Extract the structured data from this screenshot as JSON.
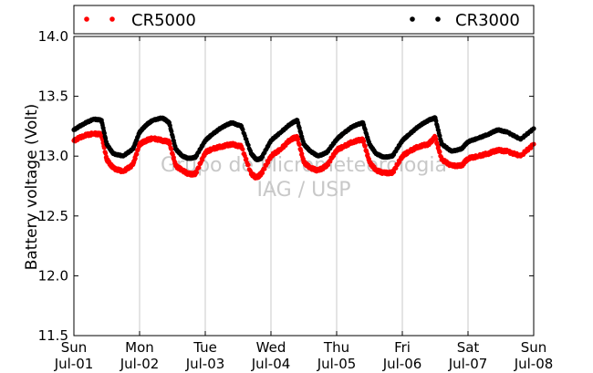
{
  "chart_data": {
    "type": "scatter",
    "title": "",
    "xlabel": "",
    "ylabel": "Battery voltage (Volt)",
    "ylim": [
      11.5,
      14.0
    ],
    "yticks": [
      11.5,
      12.0,
      12.5,
      13.0,
      13.5,
      14.0
    ],
    "ytick_labels": [
      "11.5",
      "12.0",
      "12.5",
      "13.0",
      "13.5",
      "14.0"
    ],
    "xlim": [
      0,
      7
    ],
    "x_unit": "days since Sun Jul-01",
    "xticks": [
      {
        "x": 0,
        "day": "Sun",
        "date": "Jul-01"
      },
      {
        "x": 1,
        "day": "Mon",
        "date": "Jul-02"
      },
      {
        "x": 2,
        "day": "Tue",
        "date": "Jul-03"
      },
      {
        "x": 3,
        "day": "Wed",
        "date": "Jul-04"
      },
      {
        "x": 4,
        "day": "Thu",
        "date": "Jul-05"
      },
      {
        "x": 5,
        "day": "Fri",
        "date": "Jul-06"
      },
      {
        "x": 6,
        "day": "Sat",
        "date": "Jul-07"
      },
      {
        "x": 7,
        "day": "Sun",
        "date": "Jul-08"
      }
    ],
    "grid": "vertical",
    "legend_position": "top",
    "watermark": [
      "Grupo de Micrometeorologia",
      "IAG / USP"
    ],
    "series": [
      {
        "name": "CR5000",
        "color": "#ff0000",
        "x": [
          0,
          0.15,
          0.3,
          0.42,
          0.5,
          0.6,
          0.75,
          0.9,
          1.0,
          1.1,
          1.2,
          1.35,
          1.45,
          1.55,
          1.65,
          1.75,
          1.85,
          2.0,
          2.1,
          2.25,
          2.4,
          2.55,
          2.7,
          2.78,
          2.85,
          3.0,
          3.15,
          3.3,
          3.4,
          3.5,
          3.6,
          3.72,
          3.85,
          4.0,
          4.1,
          4.25,
          4.4,
          4.5,
          4.6,
          4.72,
          4.85,
          5.0,
          5.1,
          5.25,
          5.4,
          5.5,
          5.6,
          5.75,
          5.9,
          6.0,
          6.15,
          6.3,
          6.45,
          6.6,
          6.8,
          7.0
        ],
        "y": [
          13.13,
          13.17,
          13.19,
          13.18,
          12.97,
          12.9,
          12.87,
          12.93,
          13.1,
          13.13,
          13.15,
          13.13,
          13.12,
          12.92,
          12.88,
          12.85,
          12.85,
          13.03,
          13.06,
          13.08,
          13.1,
          13.08,
          12.85,
          12.82,
          12.85,
          13.0,
          13.06,
          13.14,
          13.16,
          12.95,
          12.9,
          12.88,
          12.92,
          13.05,
          13.08,
          13.12,
          13.14,
          12.95,
          12.88,
          12.86,
          12.86,
          13.0,
          13.04,
          13.08,
          13.1,
          13.16,
          12.97,
          12.92,
          12.92,
          12.98,
          13.0,
          13.02,
          13.05,
          13.04,
          13.0,
          13.1
        ]
      },
      {
        "name": "CR3000",
        "color": "#000000",
        "x": [
          0,
          0.15,
          0.3,
          0.42,
          0.5,
          0.6,
          0.75,
          0.9,
          1.0,
          1.1,
          1.2,
          1.35,
          1.45,
          1.55,
          1.65,
          1.75,
          1.85,
          2.0,
          2.1,
          2.25,
          2.4,
          2.55,
          2.7,
          2.78,
          2.85,
          3.0,
          3.15,
          3.3,
          3.4,
          3.5,
          3.6,
          3.72,
          3.85,
          4.0,
          4.1,
          4.25,
          4.4,
          4.5,
          4.6,
          4.72,
          4.85,
          5.0,
          5.1,
          5.25,
          5.4,
          5.5,
          5.6,
          5.75,
          5.9,
          6.0,
          6.15,
          6.3,
          6.45,
          6.6,
          6.8,
          7.0
        ],
        "y": [
          13.22,
          13.27,
          13.31,
          13.3,
          13.1,
          13.02,
          13.0,
          13.06,
          13.2,
          13.26,
          13.3,
          13.32,
          13.28,
          13.06,
          13.0,
          12.98,
          12.99,
          13.13,
          13.18,
          13.24,
          13.28,
          13.25,
          13.02,
          12.97,
          12.98,
          13.13,
          13.2,
          13.27,
          13.3,
          13.1,
          13.04,
          13.0,
          13.03,
          13.14,
          13.19,
          13.25,
          13.28,
          13.1,
          13.02,
          12.99,
          13.0,
          13.13,
          13.18,
          13.25,
          13.3,
          13.32,
          13.1,
          13.04,
          13.06,
          13.12,
          13.15,
          13.18,
          13.22,
          13.2,
          13.14,
          13.23
        ]
      }
    ]
  }
}
